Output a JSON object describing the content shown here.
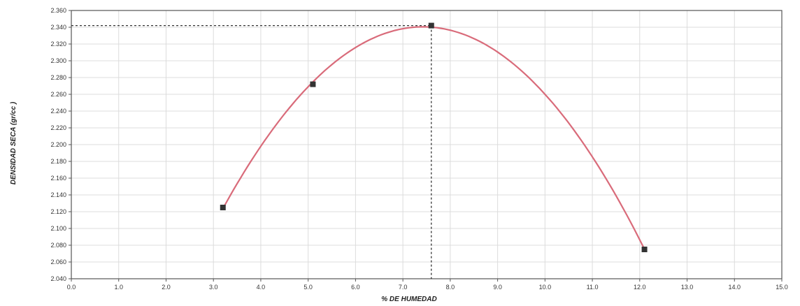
{
  "chart_data": {
    "type": "scatter",
    "title": "",
    "xlabel": "% DE HUMEDAD",
    "ylabel": "DENSIDAD SECA (gr/cc )",
    "xlim": [
      0.0,
      15.0
    ],
    "ylim": [
      2.04,
      2.36
    ],
    "x_ticks": [
      0.0,
      1.0,
      2.0,
      3.0,
      4.0,
      5.0,
      6.0,
      7.0,
      8.0,
      9.0,
      10.0,
      11.0,
      12.0,
      13.0,
      14.0,
      15.0
    ],
    "x_tick_labels": [
      "0.0",
      "1.0",
      "2.0",
      "3.0",
      "4.0",
      "5.0",
      "6.0",
      "7.0",
      "8.0",
      "9.0",
      "10.0",
      "11.0",
      "12.0",
      "13.0",
      "14.0",
      "15.0"
    ],
    "y_ticks": [
      2.04,
      2.06,
      2.08,
      2.1,
      2.12,
      2.14,
      2.16,
      2.18,
      2.2,
      2.22,
      2.24,
      2.26,
      2.28,
      2.3,
      2.32,
      2.34,
      2.36
    ],
    "y_tick_labels": [
      "2.040",
      "2.060",
      "2.080",
      "2.100",
      "2.120",
      "2.140",
      "2.160",
      "2.180",
      "2.200",
      "2.220",
      "2.240",
      "2.260",
      "2.280",
      "2.300",
      "2.320",
      "2.340",
      "2.360"
    ],
    "grid": true,
    "series": [
      {
        "points": [
          {
            "x": 3.2,
            "y": 2.125
          },
          {
            "x": 5.1,
            "y": 2.272
          },
          {
            "x": 7.6,
            "y": 2.342
          },
          {
            "x": 12.1,
            "y": 2.075
          }
        ],
        "fit_curve": true,
        "color": "#d96b7a",
        "marker_color": "#333333"
      }
    ],
    "optimum": {
      "x": 7.6,
      "y": 2.342,
      "guide_lines": "dotted"
    }
  }
}
